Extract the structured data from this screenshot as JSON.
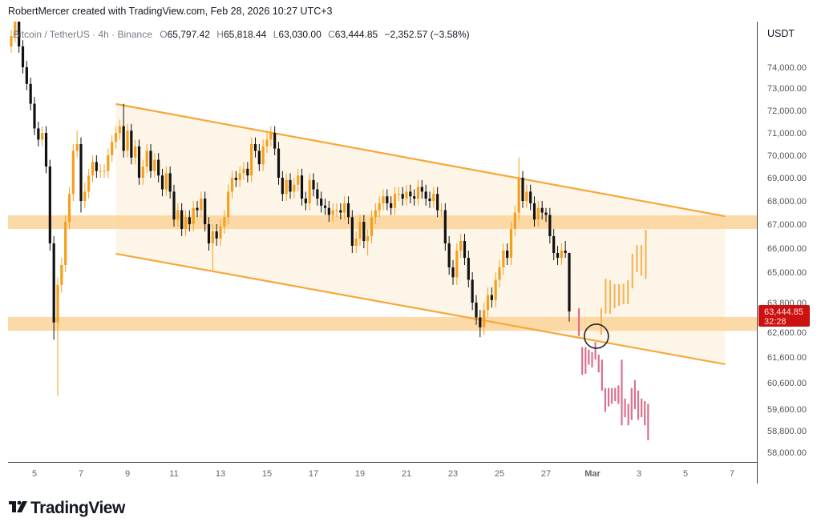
{
  "header": {
    "attribution": "RobertMercer created with TradingView.com, Feb 28, 2026 10:27 UTC+3"
  },
  "legend": {
    "symbol": "Bitcoin / TetherUS · 4h · Binance",
    "open_label": "O",
    "open": "65,797.42",
    "high_label": "H",
    "high": "65,818.44",
    "low_label": "L",
    "low": "63,030.00",
    "close_label": "C",
    "close": "63,444.85",
    "change": "−2,352.57 (−3.58%)"
  },
  "logo": {
    "text": "TradingView"
  },
  "colors": {
    "up": "#f59f1e",
    "down": "#111111",
    "projection_up": "#f7b45a",
    "projection_down": "#d9718c",
    "zone": "#fcd398",
    "channel": "#f6a83a",
    "channel_fill": "#fdf4e4",
    "last_price_bg": "#cc1111"
  },
  "chart_data": {
    "type": "candlestick",
    "title": "",
    "price_axis": {
      "currency": "USDT",
      "ticks": [
        74000,
        73000,
        72000,
        71000,
        70000,
        69000,
        68000,
        67000,
        66000,
        65000,
        63800,
        62600,
        61600,
        60600,
        59600,
        58800,
        58000
      ],
      "tick_labels": [
        "74,000.00",
        "73,000.00",
        "72,000.00",
        "71,000.00",
        "70,000.00",
        "69,000.00",
        "68,000.00",
        "67,000.00",
        "66,000.00",
        "65,000.00",
        "63,800.00",
        "62,600.00",
        "61,600.00",
        "60,600.00",
        "59,600.00",
        "58,800.00",
        "58,000.00"
      ]
    },
    "time_axis": {
      "tick_labels": [
        "5",
        "7",
        "9",
        "11",
        "13",
        "15",
        "17",
        "19",
        "21",
        "23",
        "25",
        "27",
        "Mar",
        "3",
        "5",
        "7"
      ]
    },
    "last_price": {
      "value": "63,444.85",
      "countdown": "32:28"
    },
    "candles": {
      "start": "2026-02-04T00:00",
      "interval_hours": 4,
      "ohlc": [
        [
          75000,
          75800,
          74700,
          75500
        ],
        [
          75500,
          76500,
          75200,
          76200
        ],
        [
          76200,
          76500,
          74700,
          75000
        ],
        [
          75000,
          75300,
          73700,
          74000
        ],
        [
          74000,
          74300,
          72900,
          73200
        ],
        [
          73200,
          73500,
          72000,
          72300
        ],
        [
          72300,
          72600,
          70900,
          71200
        ],
        [
          71200,
          71500,
          70400,
          70700
        ],
        [
          70700,
          71300,
          70400,
          71000
        ],
        [
          71000,
          71300,
          69200,
          69500
        ],
        [
          69500,
          69800,
          65900,
          66200
        ],
        [
          66200,
          66500,
          62300,
          63000
        ],
        [
          63000,
          64800,
          60100,
          64500
        ],
        [
          64500,
          65600,
          64200,
          65300
        ],
        [
          65300,
          67400,
          65000,
          67100
        ],
        [
          67100,
          68600,
          66800,
          68300
        ],
        [
          68300,
          70500,
          68000,
          70200
        ],
        [
          70200,
          71100,
          69900,
          70500
        ],
        [
          70500,
          70800,
          67500,
          68000
        ],
        [
          68000,
          68800,
          67700,
          68400
        ],
        [
          68400,
          69400,
          68100,
          69100
        ],
        [
          69100,
          70000,
          68800,
          69700
        ],
        [
          69700,
          70000,
          69000,
          69300
        ],
        [
          69300,
          69600,
          69000,
          69300
        ],
        [
          69300,
          69600,
          69000,
          69300
        ],
        [
          69300,
          70300,
          69000,
          70000
        ],
        [
          70000,
          70900,
          69700,
          70600
        ],
        [
          70600,
          71300,
          70300,
          71000
        ],
        [
          71000,
          71600,
          70700,
          71300
        ],
        [
          71300,
          72300,
          69900,
          70200
        ],
        [
          70200,
          71400,
          69900,
          71100
        ],
        [
          71100,
          71400,
          69600,
          69900
        ],
        [
          69900,
          70700,
          69600,
          70400
        ],
        [
          70400,
          70700,
          68700,
          69000
        ],
        [
          69000,
          69800,
          68700,
          69500
        ],
        [
          69500,
          70500,
          69200,
          70200
        ],
        [
          70200,
          70500,
          69000,
          69300
        ],
        [
          69300,
          70100,
          69000,
          69800
        ],
        [
          69800,
          70100,
          68800,
          69100
        ],
        [
          69100,
          69400,
          68200,
          68500
        ],
        [
          68500,
          69500,
          68200,
          69200
        ],
        [
          69200,
          69500,
          68100,
          68400
        ],
        [
          68400,
          68700,
          66900,
          67200
        ],
        [
          67200,
          67900,
          66900,
          67600
        ],
        [
          67600,
          67900,
          66500,
          66800
        ],
        [
          66800,
          67600,
          66500,
          67300
        ],
        [
          67300,
          67600,
          66700,
          67000
        ],
        [
          67000,
          68000,
          66700,
          67700
        ],
        [
          67700,
          68000,
          67300,
          67600
        ],
        [
          67600,
          68400,
          67300,
          68100
        ],
        [
          68100,
          68400,
          66700,
          67000
        ],
        [
          67000,
          67300,
          65900,
          66200
        ],
        [
          66200,
          67000,
          65100,
          66700
        ],
        [
          66700,
          67000,
          66100,
          66400
        ],
        [
          66400,
          67200,
          66100,
          66900
        ],
        [
          66900,
          67600,
          66600,
          67300
        ],
        [
          67300,
          68700,
          67000,
          68400
        ],
        [
          68400,
          69300,
          68100,
          69000
        ],
        [
          69000,
          69300,
          68600,
          68900
        ],
        [
          68900,
          69500,
          68600,
          69200
        ],
        [
          69200,
          69700,
          68900,
          69400
        ],
        [
          69400,
          69700,
          68800,
          69100
        ],
        [
          69100,
          70800,
          68800,
          70500
        ],
        [
          70500,
          70800,
          69900,
          70200
        ],
        [
          70200,
          70500,
          69300,
          69600
        ],
        [
          69600,
          70700,
          69300,
          70400
        ],
        [
          70400,
          71000,
          70100,
          70700
        ],
        [
          70700,
          71300,
          70400,
          71000
        ],
        [
          71000,
          71300,
          70000,
          70300
        ],
        [
          70300,
          70600,
          68700,
          69000
        ],
        [
          69000,
          69300,
          68000,
          68300
        ],
        [
          68300,
          69200,
          68000,
          68900
        ],
        [
          68900,
          69200,
          68100,
          68400
        ],
        [
          68400,
          69000,
          68100,
          68700
        ],
        [
          68700,
          69400,
          68400,
          69100
        ],
        [
          69100,
          69400,
          67800,
          68100
        ],
        [
          68100,
          68400,
          67600,
          67900
        ],
        [
          67900,
          69200,
          67600,
          68900
        ],
        [
          68900,
          69200,
          68200,
          68500
        ],
        [
          68500,
          68800,
          67800,
          68100
        ],
        [
          68100,
          68400,
          67500,
          67800
        ],
        [
          67800,
          68100,
          67400,
          67700
        ],
        [
          67700,
          68000,
          67100,
          67400
        ],
        [
          67400,
          67900,
          67100,
          67600
        ],
        [
          67600,
          67900,
          67300,
          67600
        ],
        [
          67600,
          67900,
          67200,
          67500
        ],
        [
          67500,
          68200,
          67200,
          67900
        ],
        [
          67900,
          68200,
          67000,
          67300
        ],
        [
          67300,
          67600,
          65800,
          66100
        ],
        [
          66100,
          66700,
          65800,
          66400
        ],
        [
          66400,
          67400,
          66100,
          67100
        ],
        [
          67100,
          67400,
          66000,
          66300
        ],
        [
          66300,
          66800,
          65700,
          66500
        ],
        [
          66500,
          67600,
          66200,
          67300
        ],
        [
          67300,
          67900,
          67000,
          67600
        ],
        [
          67600,
          68200,
          67300,
          67900
        ],
        [
          67900,
          68500,
          67600,
          68200
        ],
        [
          68200,
          68500,
          67600,
          67900
        ],
        [
          67900,
          68200,
          67400,
          67700
        ],
        [
          67700,
          68600,
          67400,
          68300
        ],
        [
          68300,
          68600,
          68000,
          68300
        ],
        [
          68300,
          68600,
          67800,
          68100
        ],
        [
          68100,
          68700,
          67800,
          68400
        ],
        [
          68400,
          68700,
          67900,
          68200
        ],
        [
          68200,
          68500,
          67800,
          68100
        ],
        [
          68100,
          68900,
          67800,
          68600
        ],
        [
          68600,
          68900,
          68100,
          68400
        ],
        [
          68400,
          68700,
          67800,
          68100
        ],
        [
          68100,
          68400,
          67700,
          68000
        ],
        [
          68000,
          68600,
          67700,
          68300
        ],
        [
          68300,
          68600,
          67300,
          67600
        ],
        [
          67600,
          67900,
          67300,
          67600
        ],
        [
          67600,
          67900,
          65900,
          66200
        ],
        [
          66200,
          66500,
          64900,
          65200
        ],
        [
          65200,
          65500,
          64500,
          64800
        ],
        [
          64800,
          66200,
          64500,
          65900
        ],
        [
          65900,
          66600,
          65600,
          66300
        ],
        [
          66300,
          66600,
          65300,
          65600
        ],
        [
          65600,
          65900,
          64400,
          64700
        ],
        [
          64700,
          65000,
          63500,
          63800
        ],
        [
          63800,
          64100,
          62900,
          63200
        ],
        [
          63200,
          63500,
          62400,
          62800
        ],
        [
          62800,
          63800,
          62500,
          63500
        ],
        [
          63500,
          64400,
          63200,
          64100
        ],
        [
          64100,
          64400,
          63600,
          63900
        ],
        [
          63900,
          65000,
          63600,
          64700
        ],
        [
          64700,
          65500,
          64400,
          65200
        ],
        [
          65200,
          66200,
          64900,
          65900
        ],
        [
          65900,
          66200,
          65300,
          65600
        ],
        [
          65600,
          67100,
          65300,
          66800
        ],
        [
          66800,
          67800,
          66500,
          67500
        ],
        [
          67500,
          69900,
          67200,
          69000
        ],
        [
          69000,
          69300,
          67700,
          68000
        ],
        [
          68000,
          68700,
          67700,
          68400
        ],
        [
          68400,
          68700,
          67600,
          67900
        ],
        [
          67900,
          68200,
          66900,
          67200
        ],
        [
          67200,
          68000,
          66900,
          67700
        ],
        [
          67700,
          68000,
          67200,
          67500
        ],
        [
          67500,
          67700,
          67100,
          67400
        ],
        [
          67400,
          67700,
          66200,
          66500
        ],
        [
          66500,
          66800,
          65500,
          65800
        ],
        [
          65800,
          66100,
          65300,
          65600
        ],
        [
          65600,
          66200,
          65300,
          65900
        ],
        [
          65900,
          66300,
          65600,
          65800
        ],
        [
          65797.42,
          65818.44,
          63030.0,
          63444.85
        ]
      ]
    },
    "zones": [
      {
        "price_high": 67380,
        "price_low": 66800
      },
      {
        "price_high": 63220,
        "price_low": 62660
      }
    ],
    "channel": {
      "upper": [
        {
          "t": "2026-02-08T12:00",
          "p": 72290
        },
        {
          "t": "2026-03-06T17:00",
          "p": 67340
        }
      ],
      "lower": [
        {
          "t": "2026-02-08T12:00",
          "p": 65770
        },
        {
          "t": "2026-03-06T17:00",
          "p": 61320
        }
      ]
    },
    "breakout_marker": {
      "t": "2026-03-01T04:00",
      "p": 62440
    },
    "projection_bearish": {
      "start": "2026-02-28T10:00",
      "interval_hours": 3.4,
      "ranges": [
        [
          63570,
          62450
        ],
        [
          62000,
          60900
        ],
        [
          62000,
          60950
        ],
        [
          61900,
          61300
        ],
        [
          61800,
          61200
        ],
        [
          62200,
          61500
        ],
        [
          61700,
          61000
        ],
        [
          61500,
          60300
        ],
        [
          60400,
          59500
        ],
        [
          60400,
          59700
        ],
        [
          60400,
          59800
        ],
        [
          60400,
          59900
        ],
        [
          60500,
          59800
        ],
        [
          61500,
          59000
        ],
        [
          60000,
          59300
        ],
        [
          59800,
          59000
        ],
        [
          60400,
          59200
        ],
        [
          60700,
          59600
        ],
        [
          60300,
          59200
        ],
        [
          60000,
          59300
        ],
        [
          59900,
          59000
        ],
        [
          59800,
          58450
        ]
      ]
    },
    "projection_bullish": {
      "start": "2026-03-01T09:00",
      "interval_hours": 4.6,
      "ranges": [
        [
          63570,
          62500
        ],
        [
          64740,
          63350
        ],
        [
          64680,
          63350
        ],
        [
          64530,
          63570
        ],
        [
          64530,
          63670
        ],
        [
          64550,
          63740
        ],
        [
          64680,
          63740
        ],
        [
          65770,
          64360
        ],
        [
          66130,
          65000
        ],
        [
          66130,
          64860
        ],
        [
          66770,
          64740
        ]
      ]
    }
  }
}
